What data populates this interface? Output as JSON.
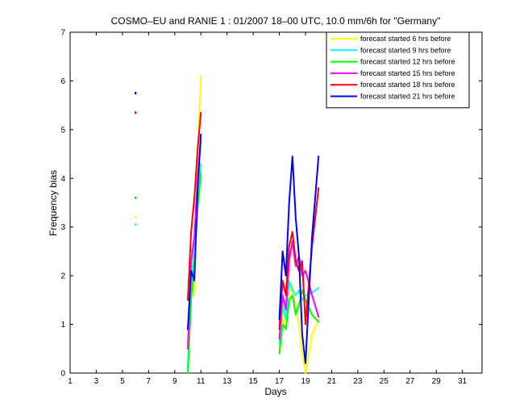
{
  "chart_data": {
    "type": "line",
    "title": "COSMO–EU and RANIE 1 : 01/2007 18–00 UTC, 10.0 mm/6h for \"Germany\"",
    "xlabel": "Days",
    "ylabel": "Frequency bias",
    "xlim": [
      1,
      32.5
    ],
    "ylim": [
      0,
      7
    ],
    "xticks": [
      1,
      3,
      5,
      7,
      9,
      11,
      13,
      15,
      17,
      19,
      21,
      23,
      25,
      27,
      29,
      31
    ],
    "yticks": [
      0,
      1,
      2,
      3,
      4,
      5,
      6,
      7
    ],
    "legend_position": "top-right",
    "series": [
      {
        "name": "forecast started 6 hrs before",
        "color": "#ffff00",
        "points": [
          [
            6,
            3.2
          ],
          null,
          [
            10,
            0.6
          ],
          [
            10.25,
            2.2
          ],
          [
            10.5,
            1.6
          ],
          [
            10.75,
            4.5
          ],
          [
            11,
            6.1
          ],
          null,
          [
            17,
            0.5
          ],
          [
            17.25,
            1.2
          ],
          [
            17.5,
            0.9
          ],
          [
            17.75,
            1.6
          ],
          [
            18,
            1.8
          ],
          [
            18.25,
            1.3
          ],
          [
            18.5,
            1.0
          ],
          [
            18.75,
            0.4
          ],
          [
            19,
            0.0
          ],
          [
            19.25,
            0.4
          ],
          [
            19.5,
            0.8
          ],
          [
            20,
            1.1
          ]
        ]
      },
      {
        "name": "forecast started 9 hrs before",
        "color": "#00ffff",
        "points": [
          [
            6,
            3.05
          ],
          null,
          [
            10,
            0.1
          ],
          [
            10.25,
            1.8
          ],
          [
            10.5,
            2.6
          ],
          [
            10.75,
            3.6
          ],
          [
            11,
            4.3
          ],
          null,
          [
            17,
            0.6
          ],
          [
            17.25,
            1.4
          ],
          [
            17.5,
            1.1
          ],
          [
            17.75,
            1.9
          ],
          [
            18,
            1.7
          ],
          [
            18.25,
            1.6
          ],
          [
            18.5,
            1.7
          ],
          [
            18.75,
            1.5
          ],
          [
            19,
            1.6
          ],
          [
            19.5,
            1.65
          ],
          [
            20,
            1.75
          ]
        ]
      },
      {
        "name": "forecast started 12 hrs before",
        "color": "#00ff00",
        "points": [
          [
            6,
            3.6
          ],
          null,
          [
            10,
            0.0
          ],
          [
            10.25,
            1.5
          ],
          [
            10.5,
            2.2
          ],
          [
            10.75,
            3.4
          ],
          [
            11,
            4.1
          ],
          null,
          [
            17,
            0.4
          ],
          [
            17.25,
            1.0
          ],
          [
            17.5,
            0.9
          ],
          [
            17.75,
            1.5
          ],
          [
            18,
            1.6
          ],
          [
            18.25,
            1.2
          ],
          [
            18.5,
            1.4
          ],
          [
            18.75,
            1.7
          ],
          [
            19,
            1.5
          ],
          [
            19.5,
            1.2
          ],
          [
            20,
            1.05
          ]
        ]
      },
      {
        "name": "forecast started 15 hrs before",
        "color": "#ff00ff",
        "points": [
          [
            10,
            0.5
          ],
          [
            10.25,
            2.3
          ],
          [
            10.5,
            2.8
          ],
          [
            10.75,
            4.0
          ],
          [
            11,
            4.8
          ],
          null,
          [
            17,
            0.7
          ],
          [
            17.25,
            1.6
          ],
          [
            17.5,
            1.3
          ],
          [
            17.75,
            2.3
          ],
          [
            18,
            2.7
          ],
          [
            18.25,
            2.2
          ],
          [
            18.5,
            2.4
          ],
          [
            18.75,
            2.0
          ],
          [
            19,
            2.1
          ],
          [
            19.5,
            1.6
          ],
          [
            20,
            1.15
          ]
        ]
      },
      {
        "name": "forecast started 18 hrs before",
        "color": "#ff0000",
        "points": [
          [
            6,
            5.35
          ],
          null,
          [
            10,
            1.5
          ],
          [
            10.25,
            2.9
          ],
          [
            10.5,
            3.6
          ],
          [
            10.75,
            4.6
          ],
          [
            11,
            5.35
          ],
          null,
          [
            17,
            0.9
          ],
          [
            17.25,
            1.9
          ],
          [
            17.5,
            1.6
          ],
          [
            17.75,
            2.6
          ],
          [
            18,
            2.9
          ],
          [
            18.25,
            2.3
          ],
          [
            18.5,
            2.1
          ],
          [
            18.75,
            2.3
          ],
          [
            19,
            1.0
          ],
          [
            19.5,
            2.6
          ],
          [
            20,
            3.8
          ]
        ]
      },
      {
        "name": "forecast started 21 hrs before",
        "color": "#0000ff",
        "points": [
          [
            6,
            5.75
          ],
          null,
          [
            10,
            0.9
          ],
          [
            10.25,
            2.1
          ],
          [
            10.5,
            1.9
          ],
          [
            10.75,
            3.8
          ],
          [
            11,
            4.9
          ],
          null,
          [
            17,
            1.1
          ],
          [
            17.25,
            2.5
          ],
          [
            17.5,
            2.0
          ],
          [
            17.75,
            3.5
          ],
          [
            18,
            4.45
          ],
          [
            18.25,
            3.2
          ],
          [
            18.5,
            2.4
          ],
          [
            18.75,
            0.8
          ],
          [
            19,
            0.2
          ],
          [
            19.5,
            2.8
          ],
          [
            20,
            4.45
          ]
        ]
      }
    ]
  }
}
